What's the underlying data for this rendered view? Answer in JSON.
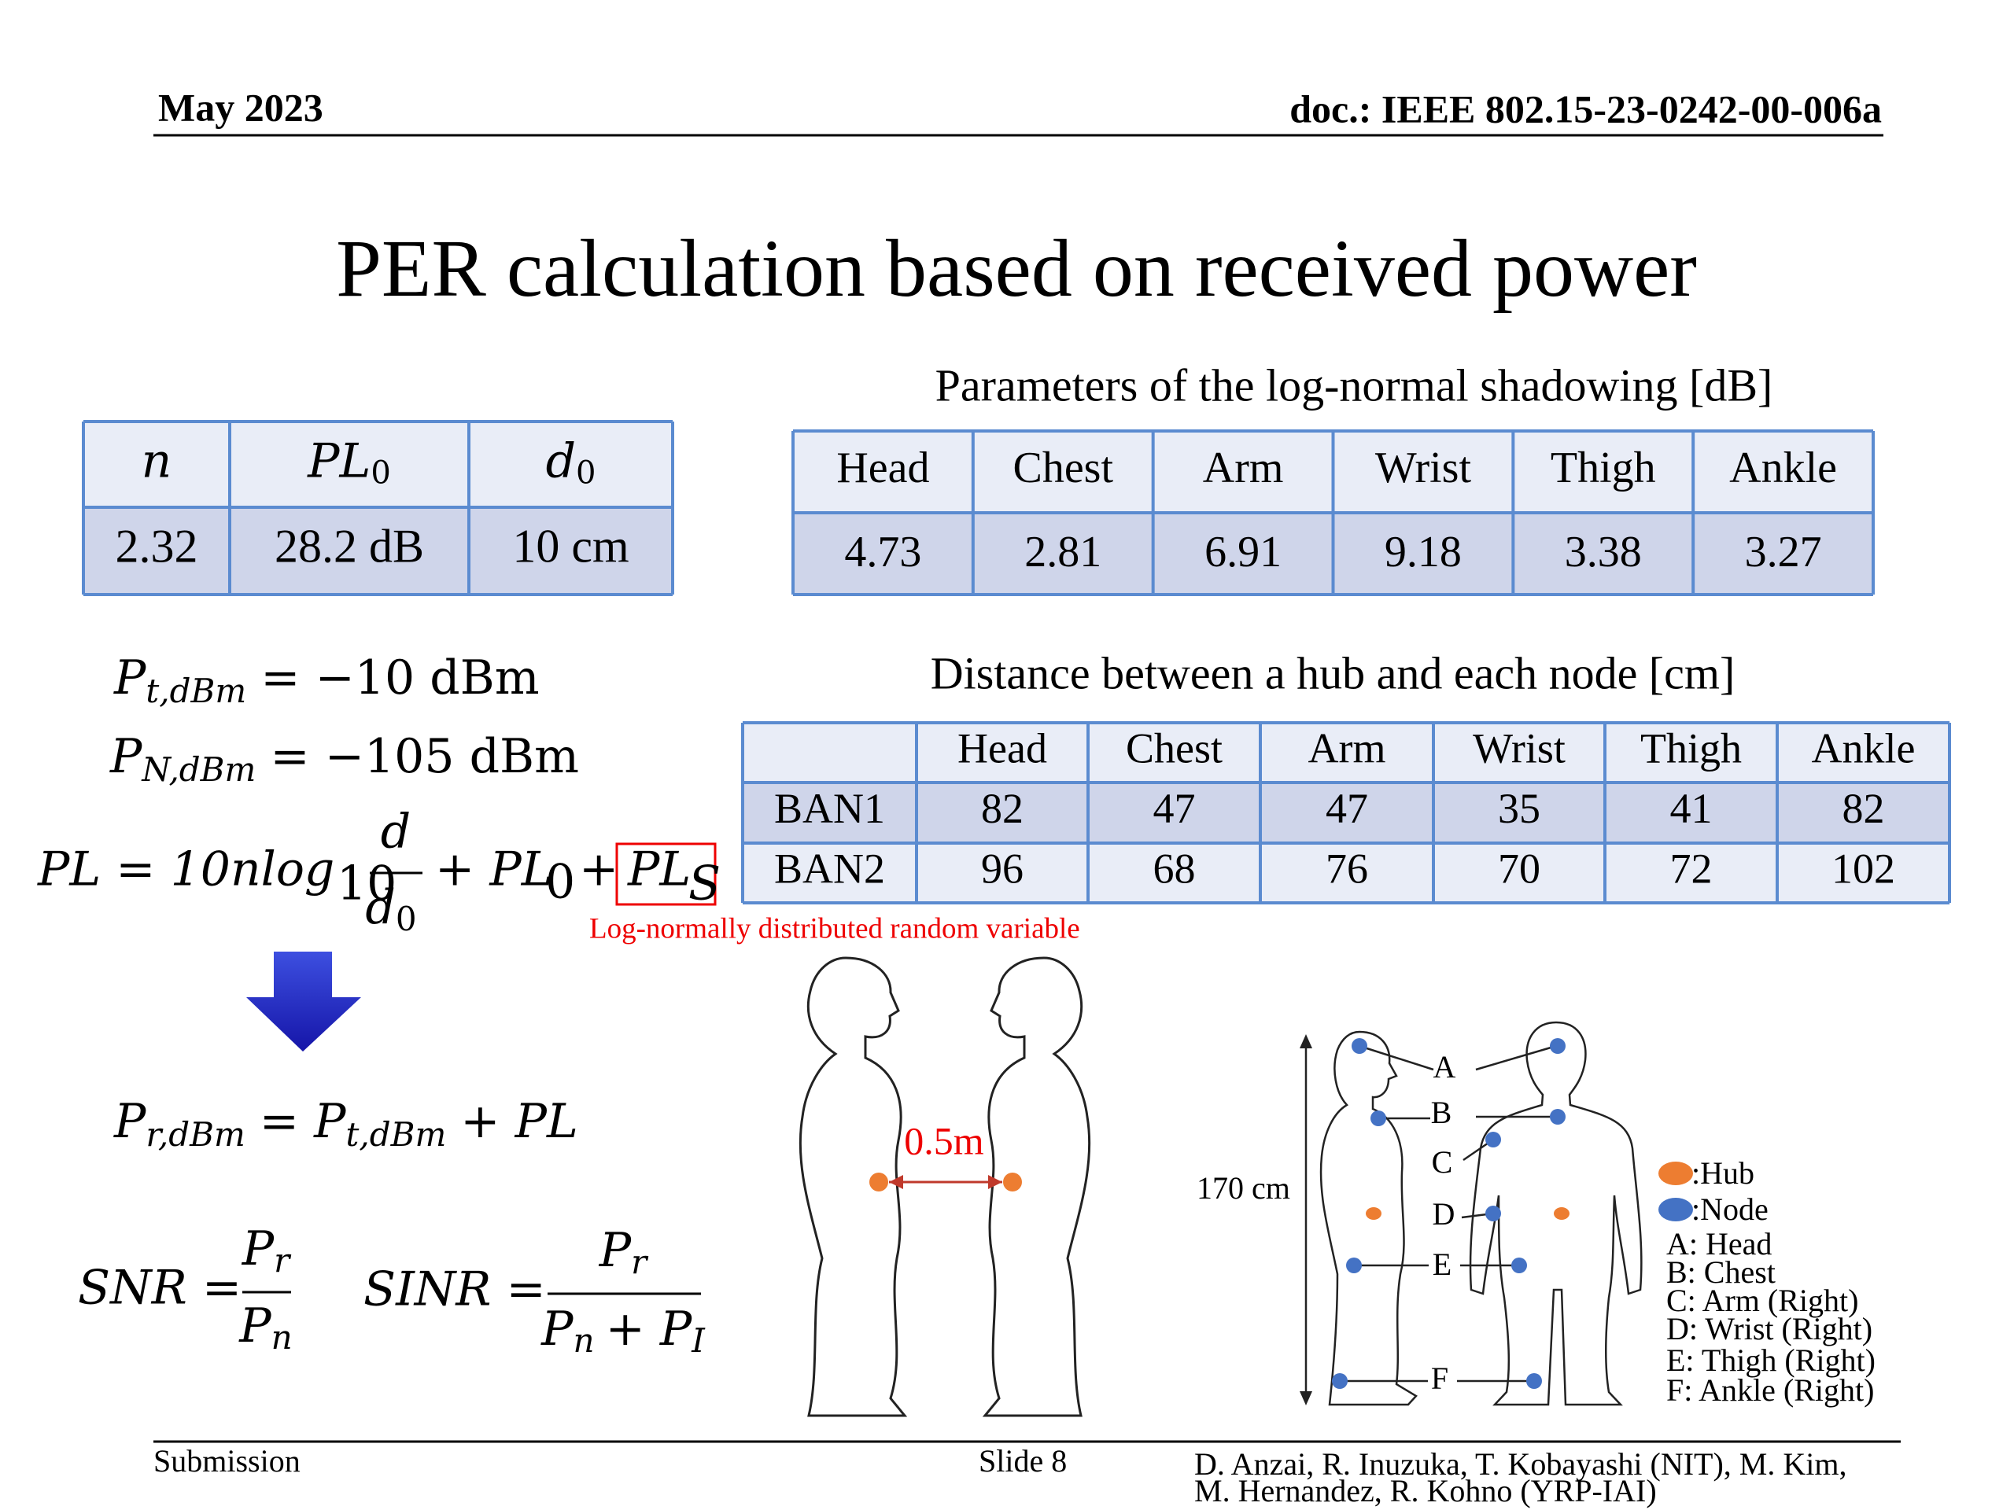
{
  "header": {
    "date": "May 2023",
    "doc_id": "doc.: IEEE 802.15-23-0242-00-006a"
  },
  "title": "PER calculation based on received power",
  "table_main_params": {
    "headers": [
      {
        "symbol": "n"
      },
      {
        "symbol": "PL",
        "subscript": "0"
      },
      {
        "symbol": "d",
        "subscript": "0"
      }
    ],
    "values": [
      "2.32",
      "28.2 dB",
      "10 cm"
    ]
  },
  "shadowing": {
    "caption": "Parameters of the log-normal shadowing [dB]",
    "headers": [
      "Head",
      "Chest",
      "Arm",
      "Wrist",
      "Thigh",
      "Ankle"
    ],
    "values": [
      "4.73",
      "2.81",
      "6.91",
      "9.18",
      "3.38",
      "3.27"
    ]
  },
  "distance": {
    "caption": "Distance between a hub and each node [cm]",
    "headers": [
      "Head",
      "Chest",
      "Arm",
      "Wrist",
      "Thigh",
      "Ankle"
    ],
    "rows": [
      {
        "name": "BAN1",
        "values": [
          "82",
          "47",
          "47",
          "35",
          "41",
          "82"
        ]
      },
      {
        "name": "BAN2",
        "values": [
          "96",
          "68",
          "76",
          "70",
          "72",
          "102"
        ]
      }
    ]
  },
  "equations": {
    "tx_power": {
      "symbol": "P",
      "subscript": "t,dBm",
      "rhs": "= −10 dBm"
    },
    "noise_power": {
      "symbol": "P",
      "subscript": "N,dBm",
      "rhs": "= −105 dBm"
    },
    "path_loss": {
      "lhs": "PL = 10nlog",
      "log_base": "10",
      "numerator": "d",
      "denominator": "d",
      "denominator_subscript": "0",
      "plus_term": "+ PL",
      "plus_term_subscript": "0",
      "plus": "+",
      "boxed": "PL",
      "boxed_subscript": "S"
    },
    "received_power": {
      "symbol": "P",
      "subscript": "r,dBm",
      "rhs": "= P",
      "rhs_subscript": "t,dBm",
      "rhs_tail": "+ PL"
    },
    "snr": {
      "lhs": "SNR =",
      "numerator": "P",
      "numerator_subscript": "r",
      "denominator": "P",
      "denominator_subscript": "n"
    },
    "sinr": {
      "lhs": "SINR =",
      "numerator": "P",
      "numerator_subscript": "r",
      "denominator": "P",
      "denominator_subscript": "n",
      "denominator_plus": "+ P",
      "denominator_plus_subscript": "I"
    }
  },
  "annotation": "Log-normally distributed random variable",
  "figure_distance": {
    "label": "0.5m"
  },
  "figure_body": {
    "height_label": "170 cm",
    "point_labels": [
      "A",
      "B",
      "C",
      "D",
      "E",
      "F"
    ],
    "legend": {
      "hub": ":Hub",
      "node": ":Node"
    },
    "key": [
      "A: Head",
      "B: Chest",
      "C: Arm (Right)",
      "D: Wrist (Right)",
      "E: Thigh (Right)",
      "F: Ankle (Right)"
    ]
  },
  "footer": {
    "left": "Submission",
    "center": "Slide 8",
    "authors": [
      "D. Anzai, R. Inuzuka, T. Kobayashi (NIT), M. Kim,",
      "M. Hernandez, R. Kohno (YRP-IAI)"
    ]
  }
}
